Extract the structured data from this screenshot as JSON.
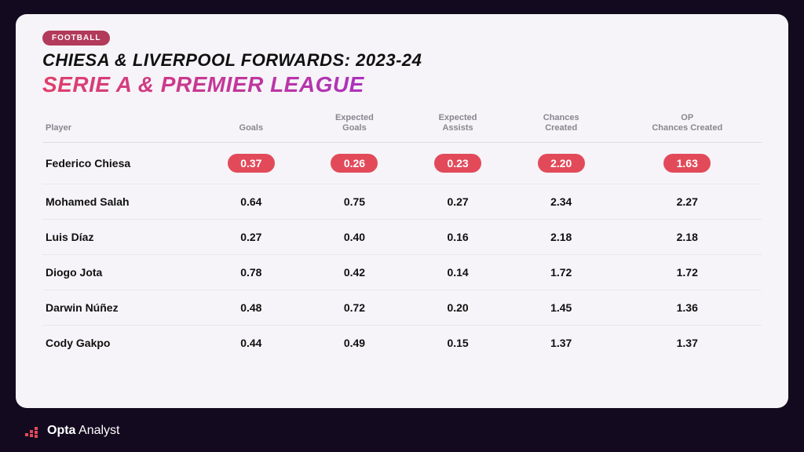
{
  "tag": "FOOTBALL",
  "title": "CHIESA & LIVERPOOL FORWARDS: 2023-24",
  "subtitle": "SERIE A & PREMIER LEAGUE",
  "colors": {
    "page_bg": "#130a1f",
    "card_bg": "#f6f4f8",
    "tag_bg": "#b23a5b",
    "pill_bg": "#e24a5a",
    "highlight_text": "#ffffff",
    "header_text": "#8a8691",
    "body_text": "#101010",
    "gradient_start": "#e13f6a",
    "gradient_end": "#9a2ed8",
    "row_border": "#e9e5ef"
  },
  "typography": {
    "title_fontsize": 22,
    "subtitle_fontsize": 28,
    "header_fontsize": 11,
    "cell_fontsize": 14,
    "brand_fontsize": 16
  },
  "table": {
    "type": "table",
    "highlight_row_index": 0,
    "columns": [
      {
        "key": "player",
        "label": "Player",
        "align": "left"
      },
      {
        "key": "goals",
        "label": "Goals",
        "align": "center"
      },
      {
        "key": "xg",
        "label": "Expected Goals",
        "align": "center"
      },
      {
        "key": "xa",
        "label": "Expected Assists",
        "align": "center"
      },
      {
        "key": "cc",
        "label": "Chances Created",
        "align": "center"
      },
      {
        "key": "opcc",
        "label": "OP Chances Created",
        "align": "center"
      }
    ],
    "rows": [
      {
        "player": "Federico Chiesa",
        "goals": "0.37",
        "xg": "0.26",
        "xa": "0.23",
        "cc": "2.20",
        "opcc": "1.63"
      },
      {
        "player": "Mohamed Salah",
        "goals": "0.64",
        "xg": "0.75",
        "xa": "0.27",
        "cc": "2.34",
        "opcc": "2.27"
      },
      {
        "player": "Luis Díaz",
        "goals": "0.27",
        "xg": "0.40",
        "xa": "0.16",
        "cc": "2.18",
        "opcc": "2.18"
      },
      {
        "player": "Diogo Jota",
        "goals": "0.78",
        "xg": "0.42",
        "xa": "0.14",
        "cc": "1.72",
        "opcc": "1.72"
      },
      {
        "player": "Darwin Núñez",
        "goals": "0.48",
        "xg": "0.72",
        "xa": "0.20",
        "cc": "1.45",
        "opcc": "1.36"
      },
      {
        "player": "Cody Gakpo",
        "goals": "0.44",
        "xg": "0.49",
        "xa": "0.15",
        "cc": "1.37",
        "opcc": "1.37"
      }
    ]
  },
  "brand": {
    "bold": "Opta",
    "light": "Analyst"
  }
}
